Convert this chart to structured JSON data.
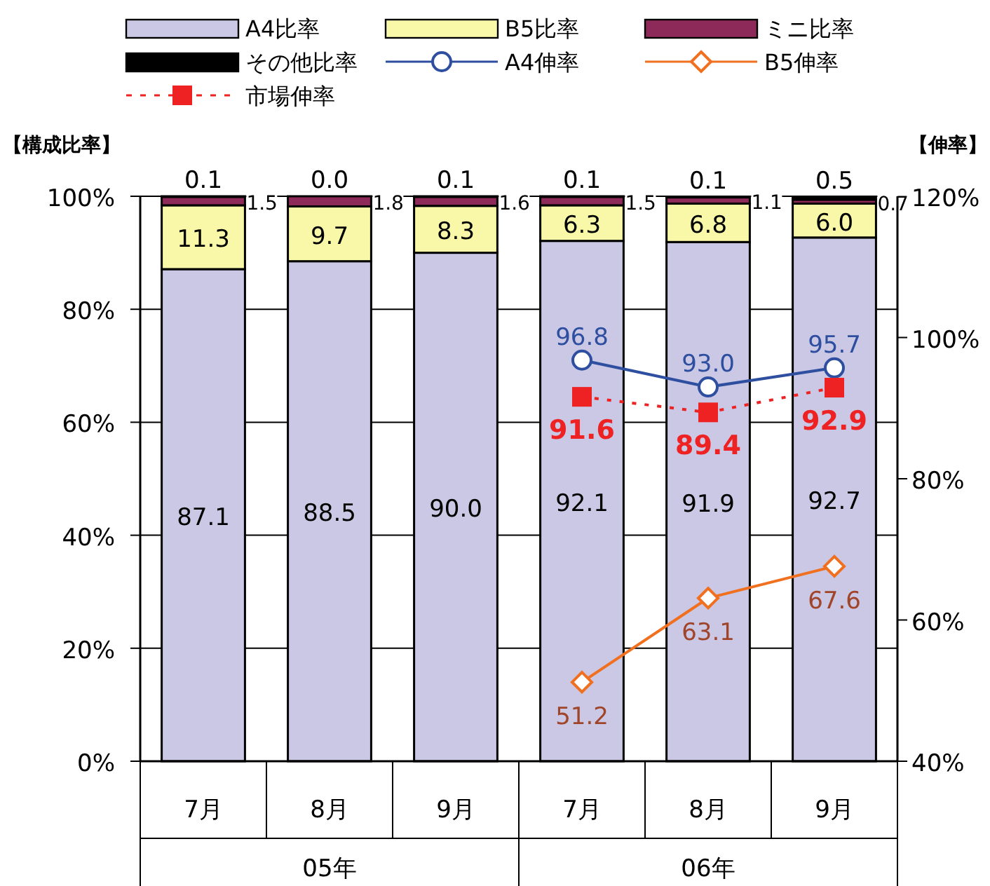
{
  "chart_data": {
    "type": "bar",
    "stacked": true,
    "categories": [
      "7月",
      "8月",
      "9月",
      "7月",
      "8月",
      "9月"
    ],
    "ylabel": "【構成比率】",
    "y2label": "【伸率】",
    "ylim": [
      0,
      100
    ],
    "yticks": [
      {
        "value": 0,
        "label": "0%"
      },
      {
        "value": 20,
        "label": "20%"
      },
      {
        "value": 40,
        "label": "40%"
      },
      {
        "value": 60,
        "label": "60%"
      },
      {
        "value": 80,
        "label": "80%"
      },
      {
        "value": 100,
        "label": "100%"
      }
    ],
    "y2lim": [
      40,
      120
    ],
    "y2ticks": [
      {
        "value": 40,
        "label": "40%"
      },
      {
        "value": 60,
        "label": "60%"
      },
      {
        "value": 80,
        "label": "80%"
      },
      {
        "value": 100,
        "label": "100%"
      },
      {
        "value": 120,
        "label": "120%"
      }
    ],
    "grid": "y",
    "legend": "top",
    "annotations": [
      "05年",
      "06年"
    ],
    "series": [
      {
        "name": "A4比率",
        "color": "#cac8e4",
        "values": [
          87.1,
          88.5,
          90.0,
          92.1,
          91.9,
          92.7
        ],
        "value_labels": [
          "87.1",
          "88.5",
          "90.0",
          "92.1",
          "91.9",
          "92.7"
        ]
      },
      {
        "name": "B5比率",
        "color": "#f8f8a8",
        "values": [
          11.3,
          9.7,
          8.3,
          6.3,
          6.8,
          6.0
        ],
        "value_labels": [
          "11.3",
          "9.7",
          "8.3",
          "6.3",
          "6.8",
          "6.0"
        ]
      },
      {
        "name": "ミニ比率",
        "color": "#8e2a5a",
        "values": [
          1.5,
          1.8,
          1.6,
          1.5,
          1.1,
          0.7
        ],
        "value_labels": [
          "1.5",
          "1.8",
          "1.6",
          "1.5",
          "1.1",
          "0.7"
        ]
      },
      {
        "name": "その他比率",
        "color": "#000000",
        "values": [
          0.1,
          0.0,
          0.1,
          0.1,
          0.1,
          0.5
        ],
        "value_labels": [
          "0.1",
          "0.0",
          "0.1",
          "0.1",
          "0.1",
          "0.5"
        ]
      },
      {
        "name": "A4伸率",
        "type": "line",
        "axis": "y2",
        "color": "#2e4ea0",
        "marker": "circle",
        "line_style": "solid",
        "values": [
          null,
          null,
          null,
          96.8,
          93.0,
          95.7
        ],
        "value_labels": [
          null,
          null,
          null,
          "96.8",
          "93.0",
          "95.7"
        ]
      },
      {
        "name": "B5伸率",
        "type": "line",
        "axis": "y2",
        "color": "#f07020",
        "marker": "diamond",
        "line_style": "solid",
        "values": [
          null,
          null,
          null,
          51.2,
          63.1,
          67.6
        ],
        "value_labels": [
          null,
          null,
          null,
          "51.2",
          "63.1",
          "67.6"
        ]
      },
      {
        "name": "市場伸率",
        "type": "line",
        "axis": "y2",
        "color": "#ee2222",
        "marker": "square",
        "line_style": "dotted",
        "values": [
          null,
          null,
          null,
          91.6,
          89.4,
          92.9
        ],
        "value_labels": [
          null,
          null,
          null,
          "91.6",
          "89.4",
          "92.9"
        ]
      }
    ]
  }
}
